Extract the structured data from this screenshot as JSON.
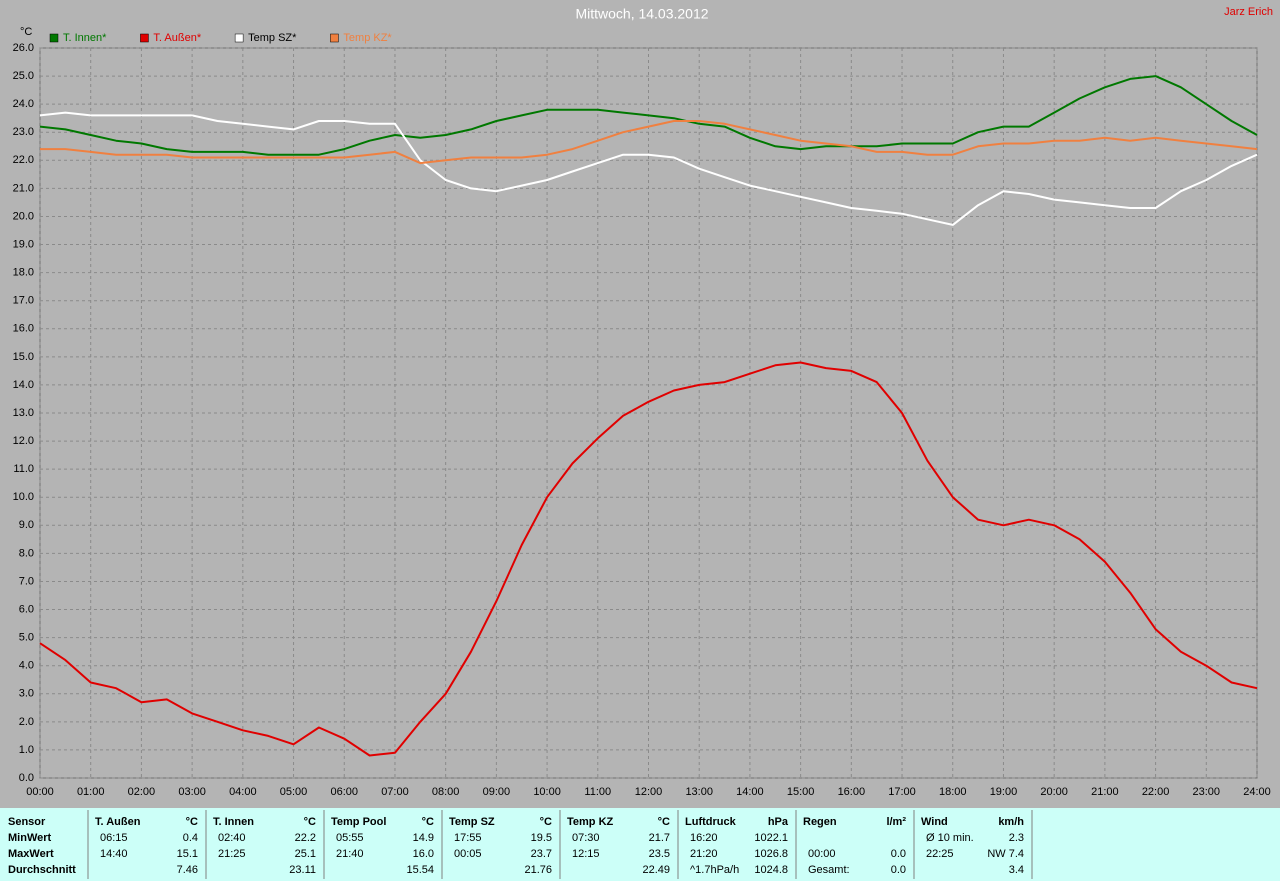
{
  "chart_data": {
    "type": "line",
    "title": "Mittwoch, 14.03.2012",
    "author": "Jarz Erich",
    "y_label": "°C",
    "x": [
      0,
      0.5,
      1,
      1.5,
      2,
      2.5,
      3,
      3.5,
      4,
      4.5,
      5,
      5.5,
      6,
      6.5,
      7,
      7.5,
      8,
      8.5,
      9,
      9.5,
      10,
      10.5,
      11,
      11.5,
      12,
      12.5,
      13,
      13.5,
      14,
      14.5,
      15,
      15.5,
      16,
      16.5,
      17,
      17.5,
      18,
      18.5,
      19,
      19.5,
      20,
      20.5,
      21,
      21.5,
      22,
      22.5,
      23,
      23.5,
      24
    ],
    "xlim": [
      0,
      24
    ],
    "xticks": [
      {
        "value": 0,
        "label": "00:00"
      },
      {
        "value": 1,
        "label": "01:00"
      },
      {
        "value": 2,
        "label": "02:00"
      },
      {
        "value": 3,
        "label": "03:00"
      },
      {
        "value": 4,
        "label": "04:00"
      },
      {
        "value": 5,
        "label": "05:00"
      },
      {
        "value": 6,
        "label": "06:00"
      },
      {
        "value": 7,
        "label": "07:00"
      },
      {
        "value": 8,
        "label": "08:00"
      },
      {
        "value": 9,
        "label": "09:00"
      },
      {
        "value": 10,
        "label": "10:00"
      },
      {
        "value": 11,
        "label": "11:00"
      },
      {
        "value": 12,
        "label": "12:00"
      },
      {
        "value": 13,
        "label": "13:00"
      },
      {
        "value": 14,
        "label": "14:00"
      },
      {
        "value": 15,
        "label": "15:00"
      },
      {
        "value": 16,
        "label": "16:00"
      },
      {
        "value": 17,
        "label": "17:00"
      },
      {
        "value": 18,
        "label": "18:00"
      },
      {
        "value": 19,
        "label": "19:00"
      },
      {
        "value": 20,
        "label": "20:00"
      },
      {
        "value": 21,
        "label": "21:00"
      },
      {
        "value": 22,
        "label": "22:00"
      },
      {
        "value": 23,
        "label": "23:00"
      },
      {
        "value": 24,
        "label": "24:00"
      }
    ],
    "ylim": [
      0,
      26
    ],
    "yticks": [
      {
        "value": 0,
        "label": "0.0"
      },
      {
        "value": 1,
        "label": "1.0"
      },
      {
        "value": 2,
        "label": "2.0"
      },
      {
        "value": 3,
        "label": "3.0"
      },
      {
        "value": 4,
        "label": "4.0"
      },
      {
        "value": 5,
        "label": "5.0"
      },
      {
        "value": 6,
        "label": "6.0"
      },
      {
        "value": 7,
        "label": "7.0"
      },
      {
        "value": 8,
        "label": "8.0"
      },
      {
        "value": 9,
        "label": "9.0"
      },
      {
        "value": 10,
        "label": "10.0"
      },
      {
        "value": 11,
        "label": "11.0"
      },
      {
        "value": 12,
        "label": "12.0"
      },
      {
        "value": 13,
        "label": "13.0"
      },
      {
        "value": 14,
        "label": "14.0"
      },
      {
        "value": 15,
        "label": "15.0"
      },
      {
        "value": 16,
        "label": "16.0"
      },
      {
        "value": 17,
        "label": "17.0"
      },
      {
        "value": 18,
        "label": "18.0"
      },
      {
        "value": 19,
        "label": "19.0"
      },
      {
        "value": 20,
        "label": "20.0"
      },
      {
        "value": 21,
        "label": "21.0"
      },
      {
        "value": 22,
        "label": "22.0"
      },
      {
        "value": 23,
        "label": "23.0"
      },
      {
        "value": 24,
        "label": "24.0"
      },
      {
        "value": 25,
        "label": "25.0"
      },
      {
        "value": 26,
        "label": "26.0"
      }
    ],
    "grid": true,
    "legend": "top-left",
    "series": [
      {
        "name": "T. Innen*",
        "color": "#007800",
        "values": [
          23.2,
          23.1,
          22.9,
          22.7,
          22.6,
          22.4,
          22.3,
          22.3,
          22.3,
          22.2,
          22.2,
          22.2,
          22.4,
          22.7,
          22.9,
          22.8,
          22.9,
          23.1,
          23.4,
          23.6,
          23.8,
          23.8,
          23.8,
          23.7,
          23.6,
          23.5,
          23.3,
          23.2,
          22.8,
          22.5,
          22.4,
          22.5,
          22.5,
          22.5,
          22.6,
          22.6,
          22.6,
          23.0,
          23.2,
          23.2,
          23.7,
          24.2,
          24.6,
          24.9,
          25.0,
          24.6,
          24.0,
          23.4,
          22.9
        ]
      },
      {
        "name": "T. Außen*",
        "color": "#e00000",
        "values": [
          4.8,
          4.2,
          3.4,
          3.2,
          2.7,
          2.8,
          2.3,
          2.0,
          1.7,
          1.5,
          1.2,
          1.8,
          1.4,
          0.8,
          0.9,
          2.0,
          3.0,
          4.5,
          6.3,
          8.3,
          10.0,
          11.2,
          12.1,
          12.9,
          13.4,
          13.8,
          14.0,
          14.1,
          14.4,
          14.7,
          14.8,
          14.6,
          14.5,
          14.1,
          13.0,
          11.3,
          10.0,
          9.2,
          9.0,
          9.2,
          9.0,
          8.5,
          7.7,
          6.6,
          5.3,
          4.5,
          4.0,
          3.4,
          3.2
        ]
      },
      {
        "name": "Temp SZ*",
        "color": "#ffffff",
        "values": [
          23.6,
          23.7,
          23.6,
          23.6,
          23.6,
          23.6,
          23.6,
          23.4,
          23.3,
          23.2,
          23.1,
          23.4,
          23.4,
          23.3,
          23.3,
          22.0,
          21.3,
          21.0,
          20.9,
          21.1,
          21.3,
          21.6,
          21.9,
          22.2,
          22.2,
          22.1,
          21.7,
          21.4,
          21.1,
          20.9,
          20.7,
          20.5,
          20.3,
          20.2,
          20.1,
          19.9,
          19.7,
          20.4,
          20.9,
          20.8,
          20.6,
          20.5,
          20.4,
          20.3,
          20.3,
          20.9,
          21.3,
          21.8,
          22.2
        ]
      },
      {
        "name": "Temp KZ*",
        "color": "#f08040",
        "values": [
          22.4,
          22.4,
          22.3,
          22.2,
          22.2,
          22.2,
          22.1,
          22.1,
          22.1,
          22.1,
          22.1,
          22.1,
          22.1,
          22.2,
          22.3,
          21.9,
          22.0,
          22.1,
          22.1,
          22.1,
          22.2,
          22.4,
          22.7,
          23.0,
          23.2,
          23.4,
          23.4,
          23.3,
          23.1,
          22.9,
          22.7,
          22.6,
          22.5,
          22.3,
          22.3,
          22.2,
          22.2,
          22.5,
          22.6,
          22.6,
          22.7,
          22.7,
          22.8,
          22.7,
          22.8,
          22.7,
          22.6,
          22.5,
          22.4
        ]
      }
    ]
  },
  "table": {
    "row_labels": [
      "Sensor",
      "MinWert",
      "MaxWert",
      "Durchschnitt"
    ],
    "columns": [
      {
        "name": "T. Außen",
        "unit": "°C",
        "rows": [
          {
            "left": "06:15",
            "right": "0.4"
          },
          {
            "left": "14:40",
            "right": "15.1"
          },
          {
            "right": "7.46"
          }
        ]
      },
      {
        "name": "T. Innen",
        "unit": "°C",
        "rows": [
          {
            "left": "02:40",
            "right": "22.2"
          },
          {
            "left": "21:25",
            "right": "25.1"
          },
          {
            "right": "23.11"
          }
        ]
      },
      {
        "name": "Temp Pool",
        "unit": "°C",
        "rows": [
          {
            "left": "05:55",
            "right": "14.9"
          },
          {
            "left": "21:40",
            "right": "16.0"
          },
          {
            "right": "15.54"
          }
        ]
      },
      {
        "name": "Temp SZ",
        "unit": "°C",
        "rows": [
          {
            "left": "17:55",
            "right": "19.5"
          },
          {
            "left": "00:05",
            "right": "23.7"
          },
          {
            "right": "21.76"
          }
        ]
      },
      {
        "name": "Temp KZ",
        "unit": "°C",
        "rows": [
          {
            "left": "07:30",
            "right": "21.7"
          },
          {
            "left": "12:15",
            "right": "23.5"
          },
          {
            "right": "22.49"
          }
        ]
      },
      {
        "name": "Luftdruck",
        "unit": "hPa",
        "rows": [
          {
            "left": "16:20",
            "right": "1022.1"
          },
          {
            "left": "21:20",
            "right": "1026.8"
          },
          {
            "left": "^1.7hPa/h",
            "right": "1024.8"
          }
        ]
      },
      {
        "name": "Regen",
        "unit": "l/m²",
        "rows": [
          {},
          {
            "left": "00:00",
            "right": "0.0"
          },
          {
            "left": "Gesamt:",
            "right": "0.0"
          }
        ]
      },
      {
        "name": "Wind",
        "unit": "km/h",
        "rows": [
          {
            "left": "Ø 10 min.",
            "right": "2.3"
          },
          {
            "left": "22:25",
            "right": "NW 7.4"
          },
          {
            "right": "3.4"
          }
        ]
      }
    ]
  }
}
